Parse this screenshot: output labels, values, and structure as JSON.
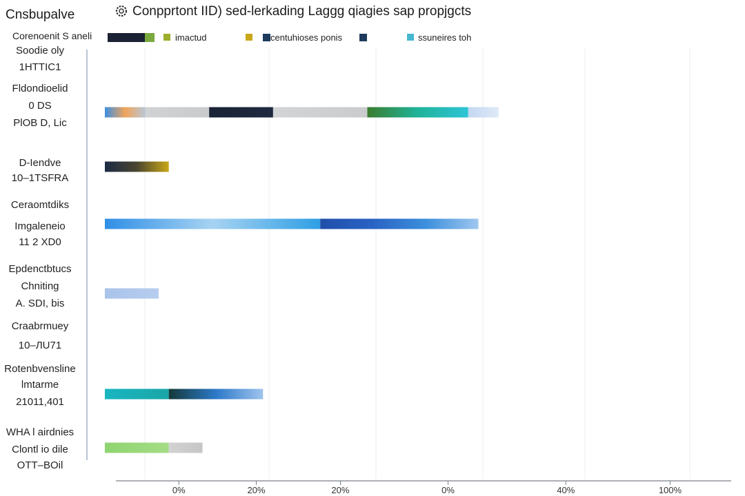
{
  "header": {
    "app_name": "Cnsbupalve",
    "icon": "gear-icon",
    "title": "Conpprtont IID) sed-lerkading Laggg qiagies  sap propjgcts",
    "subtitle": "Corenoenit S aneli"
  },
  "legend": [
    {
      "label": "imactud",
      "color": "#9cae2a"
    },
    {
      "label": "centuhioses ponis",
      "color": "#c9a718"
    },
    {
      "label": "ssuneires toh",
      "color": "#45b7d1"
    }
  ],
  "chart_data": {
    "type": "bar",
    "orientation": "horizontal",
    "stacked": true,
    "categories": [
      [
        "Soodie oly",
        "1HTTIC1"
      ],
      [
        "Fldondioelid",
        "0 DS",
        "PlOB D, Lic"
      ],
      [
        "D-Iendve",
        "10–1TSFRA"
      ],
      [
        "Ceraomtdiks",
        "Imgaleneio",
        "11 2 XD0"
      ],
      [
        "Epdenctbtucs",
        "Chniting",
        "A. SDI, bis"
      ],
      [
        "Craabrmuey",
        "10–ЛU71"
      ],
      [
        "Rotenbvensline",
        "lmtarme",
        "21011,401"
      ],
      [
        "WHA l airdnies",
        "Clontl io dile",
        "OTT–BOil"
      ]
    ],
    "bars": [
      {
        "category_index": 0,
        "segments": []
      },
      {
        "category_index": 1,
        "segments": [
          {
            "value": 12,
            "colors": [
              "#3d8fe2",
              "#f0a45a",
              "#b9c7d6"
            ]
          },
          {
            "value": 19,
            "colors": [
              "#d0d2d4",
              "#c8cacc"
            ]
          },
          {
            "value": 19,
            "colors": [
              "#1a2236",
              "#1f2a40"
            ]
          },
          {
            "value": 28,
            "colors": [
              "#d2d4d6",
              "#c9cbcd"
            ]
          },
          {
            "value": 30,
            "colors": [
              "#3a7d2e",
              "#1fb39a",
              "#2ec4d6"
            ]
          },
          {
            "value": 9,
            "colors": [
              "#c3d8f2",
              "#dfe9f7"
            ]
          }
        ]
      },
      {
        "category_index": 2,
        "segments": [
          {
            "value": 19,
            "colors": [
              "#1b2a44",
              "#4a4530",
              "#c9a718"
            ]
          }
        ]
      },
      {
        "category_index": 3,
        "segments": [
          {
            "value": 64,
            "colors": [
              "#2f8fe6",
              "#a7d3f2",
              "#2f9fe4"
            ]
          },
          {
            "value": 47,
            "colors": [
              "#1f4faa",
              "#2a63c4",
              "#3c8fdc",
              "#9ec7f0"
            ]
          }
        ]
      },
      {
        "category_index": 4,
        "segments": [
          {
            "value": 16,
            "colors": [
              "#a9c3ea",
              "#b7cdef"
            ]
          }
        ]
      },
      {
        "category_index": 5,
        "segments": []
      },
      {
        "category_index": 6,
        "segments": [
          {
            "value": 19,
            "colors": [
              "#19b6c1",
              "#1aa5a7"
            ]
          },
          {
            "value": 28,
            "colors": [
              "#14393a",
              "#2c79c9",
              "#9fc3ee"
            ]
          }
        ]
      },
      {
        "category_index": 7,
        "segments": [
          {
            "value": 19,
            "colors": [
              "#8fd470",
              "#a4dc85"
            ]
          },
          {
            "value": 10,
            "colors": [
              "#d2d2d2",
              "#c6c6c6"
            ]
          }
        ]
      }
    ],
    "xticks": [
      {
        "value": 22,
        "label": "0%"
      },
      {
        "value": 45,
        "label": "20%"
      },
      {
        "value": 70,
        "label": "20%"
      },
      {
        "value": 102,
        "label": "0%"
      },
      {
        "value": 137,
        "label": "40%"
      },
      {
        "value": 168,
        "label": "100%"
      }
    ],
    "xlim": [
      0,
      180
    ],
    "grid": true
  }
}
